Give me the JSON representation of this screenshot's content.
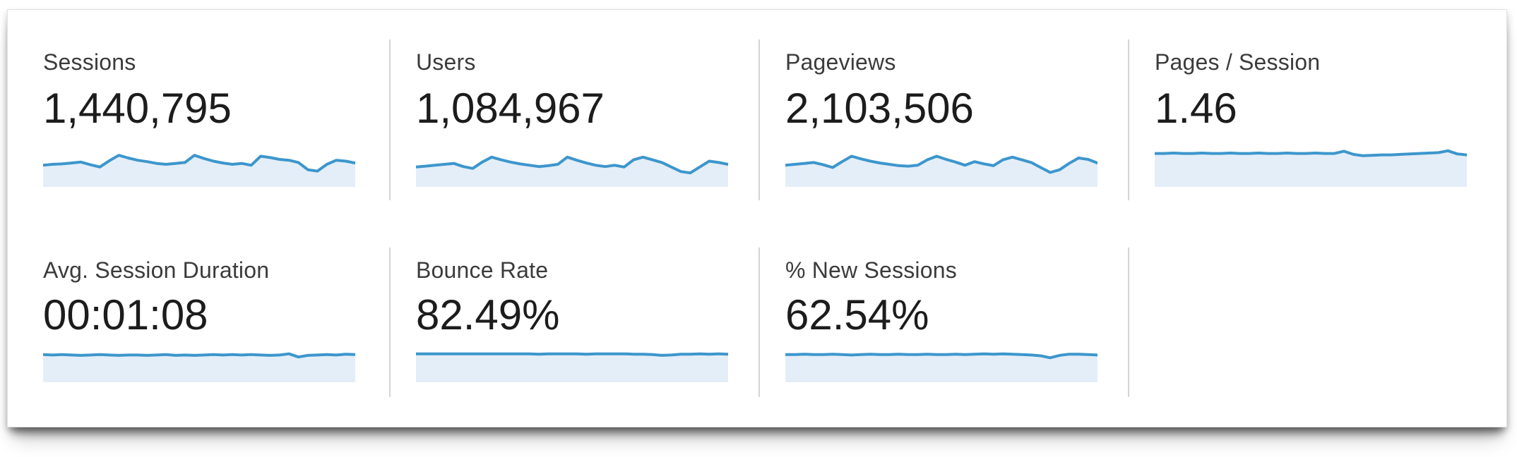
{
  "panel": {
    "name": "analytics-metric-summary"
  },
  "colors": {
    "spark_line": "#3d96cc",
    "spark_fill": "#e4eef8",
    "divider": "#d4d4d4",
    "label_text": "#3b3b3b",
    "value_text": "#1c1c1c",
    "panel_background": "#ffffff"
  },
  "cards": [
    {
      "label": "Sessions",
      "value": "1,440,795",
      "sparkline": {
        "type": "area",
        "values": [
          0.48,
          0.5,
          0.51,
          0.53,
          0.55,
          0.49,
          0.44,
          0.58,
          0.7,
          0.64,
          0.59,
          0.56,
          0.52,
          0.5,
          0.52,
          0.54,
          0.7,
          0.63,
          0.57,
          0.53,
          0.5,
          0.52,
          0.48,
          0.68,
          0.65,
          0.61,
          0.59,
          0.54,
          0.38,
          0.35,
          0.5,
          0.59,
          0.57,
          0.53
        ]
      }
    },
    {
      "label": "Users",
      "value": "1,084,967",
      "sparkline": {
        "type": "area",
        "values": [
          0.44,
          0.46,
          0.48,
          0.5,
          0.52,
          0.45,
          0.41,
          0.55,
          0.66,
          0.6,
          0.55,
          0.51,
          0.48,
          0.45,
          0.47,
          0.5,
          0.66,
          0.59,
          0.53,
          0.48,
          0.45,
          0.48,
          0.44,
          0.6,
          0.66,
          0.6,
          0.54,
          0.44,
          0.34,
          0.31,
          0.44,
          0.57,
          0.54,
          0.5
        ]
      }
    },
    {
      "label": "Pageviews",
      "value": "2,103,506",
      "sparkline": {
        "type": "area",
        "values": [
          0.48,
          0.5,
          0.52,
          0.54,
          0.49,
          0.43,
          0.56,
          0.68,
          0.62,
          0.57,
          0.53,
          0.5,
          0.47,
          0.46,
          0.48,
          0.6,
          0.68,
          0.61,
          0.55,
          0.48,
          0.56,
          0.51,
          0.47,
          0.6,
          0.66,
          0.6,
          0.54,
          0.43,
          0.32,
          0.38,
          0.52,
          0.64,
          0.61,
          0.53
        ]
      }
    },
    {
      "label": "Pages / Session",
      "value": "1.46",
      "sparkline": {
        "type": "area",
        "values": [
          0.74,
          0.74,
          0.75,
          0.74,
          0.74,
          0.75,
          0.74,
          0.74,
          0.75,
          0.74,
          0.74,
          0.75,
          0.74,
          0.74,
          0.75,
          0.74,
          0.74,
          0.75,
          0.74,
          0.74,
          0.79,
          0.72,
          0.69,
          0.7,
          0.71,
          0.71,
          0.72,
          0.73,
          0.74,
          0.75,
          0.76,
          0.8,
          0.73,
          0.71
        ]
      }
    },
    {
      "label": "Avg. Session Duration",
      "value": "00:01:08",
      "sparkline": {
        "type": "area",
        "values": [
          0.7,
          0.69,
          0.7,
          0.69,
          0.68,
          0.69,
          0.7,
          0.69,
          0.68,
          0.69,
          0.69,
          0.68,
          0.69,
          0.7,
          0.68,
          0.69,
          0.68,
          0.69,
          0.7,
          0.69,
          0.7,
          0.69,
          0.7,
          0.69,
          0.68,
          0.69,
          0.72,
          0.64,
          0.68,
          0.69,
          0.7,
          0.69,
          0.71,
          0.7
        ]
      }
    },
    {
      "label": "Bounce Rate",
      "value": "82.49%",
      "sparkline": {
        "type": "area",
        "values": [
          0.72,
          0.72,
          0.72,
          0.72,
          0.72,
          0.72,
          0.72,
          0.72,
          0.72,
          0.72,
          0.72,
          0.72,
          0.72,
          0.71,
          0.72,
          0.72,
          0.72,
          0.72,
          0.71,
          0.72,
          0.72,
          0.72,
          0.72,
          0.71,
          0.71,
          0.7,
          0.68,
          0.69,
          0.71,
          0.71,
          0.72,
          0.71,
          0.72,
          0.71
        ]
      }
    },
    {
      "label": "% New Sessions",
      "value": "62.54%",
      "sparkline": {
        "type": "area",
        "values": [
          0.7,
          0.7,
          0.71,
          0.7,
          0.7,
          0.71,
          0.7,
          0.69,
          0.7,
          0.71,
          0.7,
          0.7,
          0.71,
          0.7,
          0.7,
          0.71,
          0.7,
          0.7,
          0.71,
          0.7,
          0.71,
          0.72,
          0.71,
          0.72,
          0.71,
          0.7,
          0.69,
          0.67,
          0.62,
          0.68,
          0.71,
          0.71,
          0.7,
          0.69
        ]
      }
    }
  ]
}
